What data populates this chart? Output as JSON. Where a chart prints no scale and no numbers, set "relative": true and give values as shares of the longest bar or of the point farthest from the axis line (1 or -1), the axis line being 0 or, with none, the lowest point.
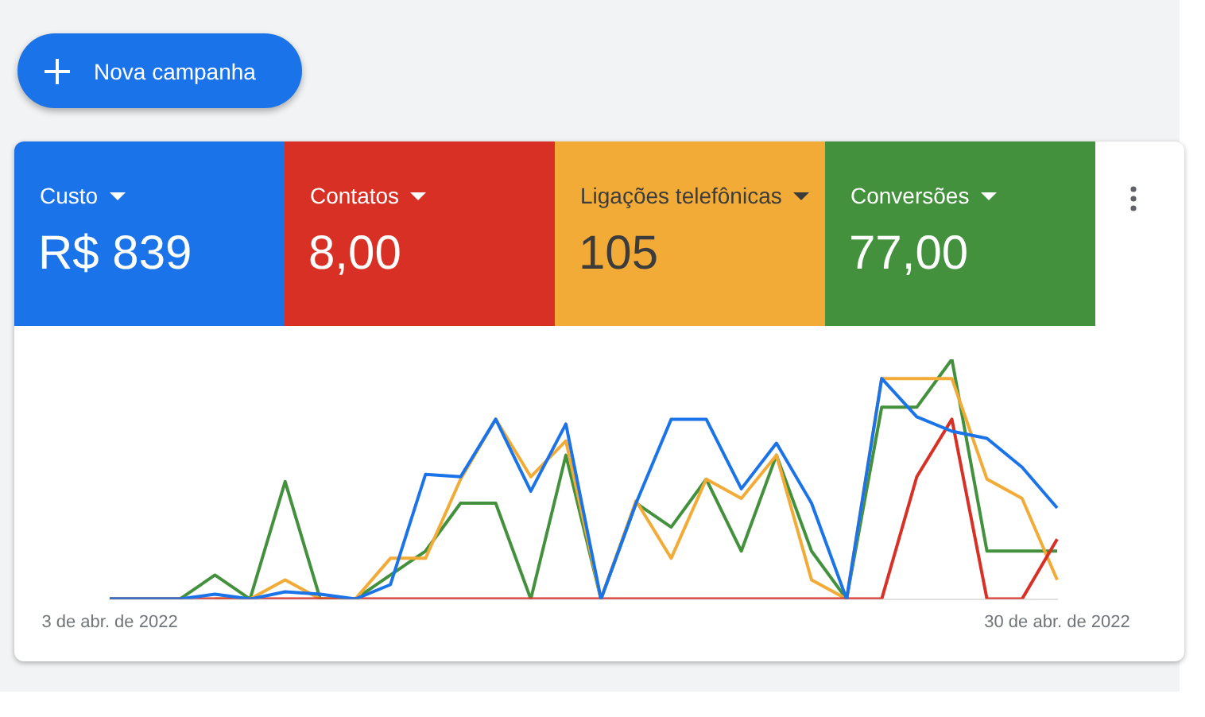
{
  "chart_data": {
    "type": "line",
    "relative": true,
    "legend": "top",
    "marker": "none",
    "line_style": "solid",
    "categories": [
      "3 de abr. de 2022",
      null,
      null,
      null,
      null,
      null,
      null,
      null,
      null,
      null,
      null,
      null,
      null,
      null,
      null,
      null,
      null,
      null,
      null,
      null,
      null,
      null,
      null,
      null,
      null,
      null,
      null,
      "30 de abr. de 2022"
    ],
    "series": [
      {
        "name": "Custo",
        "color": "#1a73e8",
        "values": [
          0,
          0,
          0,
          0.02,
          0,
          0.03,
          0.02,
          0,
          0.06,
          0.52,
          0.51,
          0.75,
          0.45,
          0.73,
          0,
          0.4,
          0.75,
          0.75,
          0.46,
          0.65,
          0.4,
          0,
          0.92,
          0.76,
          0.7,
          0.67,
          0.55,
          0.38
        ]
      },
      {
        "name": "Contatos",
        "color": "#d93025",
        "values": [
          0,
          0,
          0,
          0,
          0,
          0,
          0,
          0,
          0,
          0,
          0,
          0,
          0,
          0,
          0,
          0,
          0,
          0,
          0,
          0,
          0,
          0,
          0,
          0.51,
          0.75,
          0,
          0,
          0.25
        ]
      },
      {
        "name": "Ligações telefônicas",
        "color": "#f2ab37",
        "values": [
          null,
          null,
          null,
          0,
          0,
          0.08,
          0,
          0,
          0.17,
          0.17,
          0.5,
          0.75,
          0.51,
          0.66,
          0,
          0.41,
          0.17,
          0.5,
          0.42,
          0.6,
          0.08,
          0,
          0.92,
          0.92,
          0.92,
          0.5,
          0.42,
          0.08
        ]
      },
      {
        "name": "Conversões",
        "color": "#43913d",
        "values": [
          0,
          0,
          0,
          0.1,
          0,
          0.49,
          0,
          0,
          0.1,
          0.2,
          0.4,
          0.4,
          0,
          0.6,
          0,
          0.4,
          0.3,
          0.5,
          0.2,
          0.6,
          0.2,
          0,
          0.8,
          0.8,
          1,
          0.2,
          0.2,
          0.2
        ]
      }
    ],
    "annotations": [
      "Nova campanha",
      "R$ 839",
      "8,00",
      "105",
      "77,00"
    ]
  }
}
